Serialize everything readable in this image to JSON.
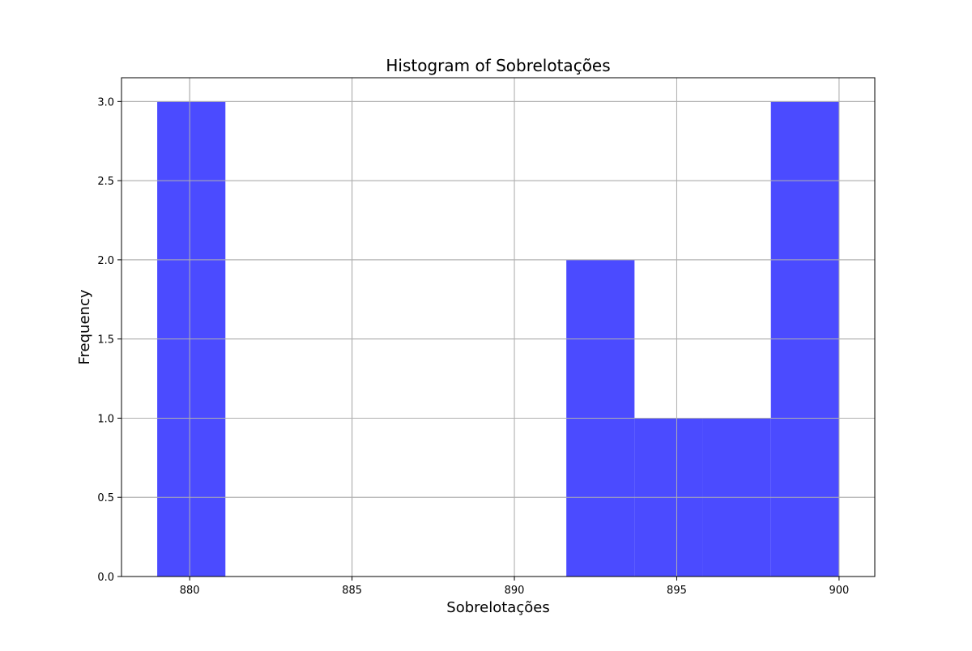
{
  "chart_data": {
    "type": "histogram",
    "title": "Histogram of Sobrelotações",
    "xlabel": "Sobrelotações",
    "ylabel": "Frequency",
    "xlim": [
      877.9,
      901.1
    ],
    "ylim": [
      0,
      3.15
    ],
    "xticks": [
      880,
      885,
      890,
      895,
      900
    ],
    "yticks": [
      0.0,
      0.5,
      1.0,
      1.5,
      2.0,
      2.5,
      3.0
    ],
    "grid": true,
    "bar_color": "#4b4bff",
    "bins": [
      {
        "start": 879.0,
        "end": 881.1,
        "count": 3
      },
      {
        "start": 881.1,
        "end": 883.2,
        "count": 0
      },
      {
        "start": 883.2,
        "end": 885.3,
        "count": 0
      },
      {
        "start": 885.3,
        "end": 887.4,
        "count": 0
      },
      {
        "start": 887.4,
        "end": 889.5,
        "count": 0
      },
      {
        "start": 889.5,
        "end": 891.6,
        "count": 0
      },
      {
        "start": 891.6,
        "end": 893.7,
        "count": 2
      },
      {
        "start": 893.7,
        "end": 895.8,
        "count": 1
      },
      {
        "start": 895.8,
        "end": 897.9,
        "count": 1
      },
      {
        "start": 897.9,
        "end": 900.0,
        "count": 3
      }
    ]
  }
}
